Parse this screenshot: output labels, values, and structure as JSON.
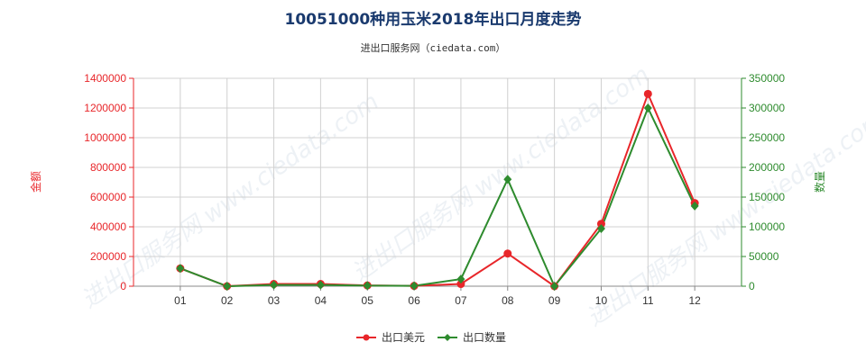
{
  "chart_data": {
    "type": "line",
    "title": "10051000种用玉米2018年出口月度走势",
    "subtitle": "进出口服务网（ciedata.com）",
    "watermark": "进出口服务网 www.ciedata.com",
    "categories": [
      "01",
      "02",
      "03",
      "04",
      "05",
      "06",
      "07",
      "08",
      "09",
      "10",
      "11",
      "12"
    ],
    "y_left": {
      "label": "金额",
      "ylim": [
        0,
        1400000
      ],
      "ticks": [
        0,
        200000,
        400000,
        600000,
        800000,
        1000000,
        1200000,
        1400000
      ],
      "color": "#e8262a"
    },
    "y_right": {
      "label": "数量",
      "ylim": [
        0,
        350000
      ],
      "ticks": [
        0,
        50000,
        100000,
        150000,
        200000,
        250000,
        300000,
        350000
      ],
      "color": "#2e8b2e"
    },
    "series": [
      {
        "name": "出口美元",
        "axis": "left",
        "color": "#e8262a",
        "values": [
          120000,
          0,
          15000,
          15000,
          5000,
          2000,
          15000,
          220000,
          0,
          420000,
          1295000,
          560000
        ]
      },
      {
        "name": "出口数量",
        "axis": "right",
        "color": "#2e8b2e",
        "values": [
          30000,
          0,
          2000,
          2000,
          1000,
          500,
          12000,
          180000,
          0,
          97000,
          300000,
          135000
        ]
      }
    ],
    "grid": true,
    "legend": "bottom-center"
  }
}
